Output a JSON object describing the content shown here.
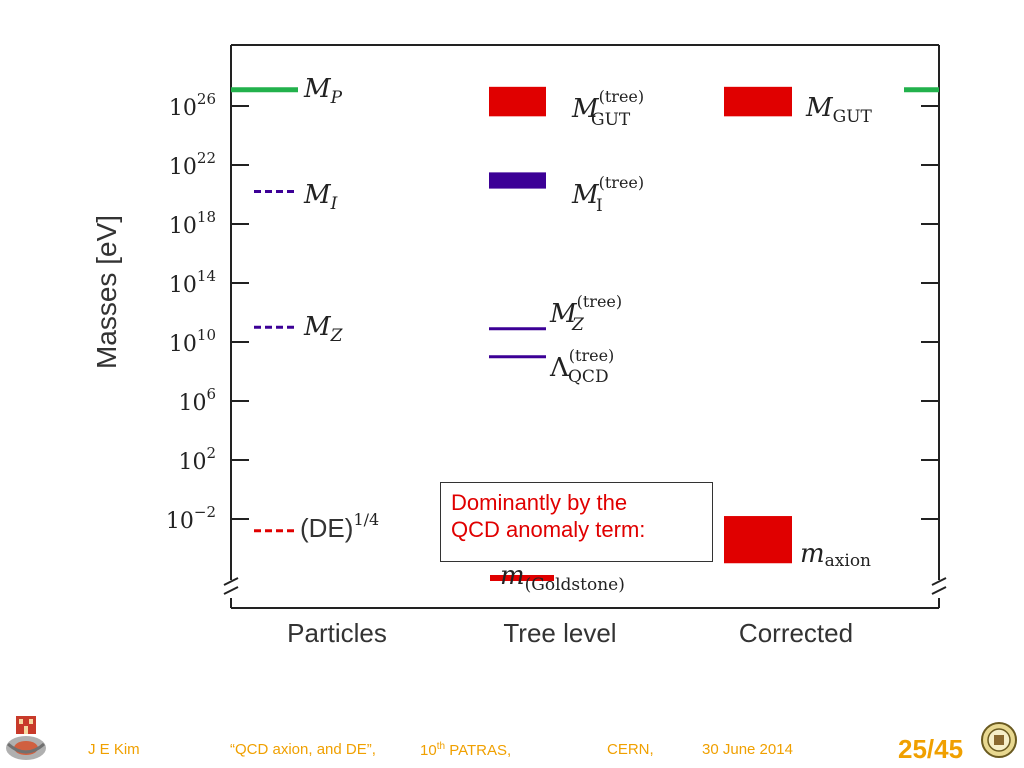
{
  "chart_data": {
    "type": "diagram",
    "ylabel": "Masses [eV]",
    "y_scale": "log10",
    "ylim_exp": [
      -6,
      30
    ],
    "y_ticks": [
      {
        "exp": 26,
        "base": "10",
        "sup": "26"
      },
      {
        "exp": 22,
        "base": "10",
        "sup": "22"
      },
      {
        "exp": 18,
        "base": "10",
        "sup": "18"
      },
      {
        "exp": 14,
        "base": "10",
        "sup": "14"
      },
      {
        "exp": 10,
        "base": "10",
        "sup": "10"
      },
      {
        "exp": 6,
        "base": "10",
        "sup": "6"
      },
      {
        "exp": 2,
        "base": "10",
        "sup": "2"
      },
      {
        "exp": -2,
        "base": "10",
        "sup": "−2"
      }
    ],
    "x_categories": [
      "Particles",
      "Tree level",
      "Corrected"
    ],
    "levels": [
      {
        "column": "Particles",
        "label_main": "M",
        "label_sub": "P",
        "exp_low": 27.1,
        "exp_high": 27.1,
        "color": "#22b14c",
        "style": "solid"
      },
      {
        "column": "Particles",
        "label_main": "M",
        "label_sub": "I",
        "exp_low": 20.2,
        "exp_high": 20.2,
        "color": "#3c0096",
        "style": "dashed"
      },
      {
        "column": "Particles",
        "label_main": "M",
        "label_sub": "Z",
        "exp_low": 11.0,
        "exp_high": 11.0,
        "color": "#3c0096",
        "style": "dashed"
      },
      {
        "column": "Particles",
        "label_main": "(DE)",
        "label_sup": "1/4",
        "exp_low": -2.8,
        "exp_high": -2.8,
        "color": "#e00000",
        "style": "dashed"
      },
      {
        "column": "Tree level",
        "label_main": "M",
        "label_sub": "GUT",
        "label_sup": "(tree)",
        "exp_low": 25.3,
        "exp_high": 27.3,
        "color": "#e00000",
        "style": "bar"
      },
      {
        "column": "Tree level",
        "label_main": "M",
        "label_sub": "I",
        "label_sup": "(tree)",
        "exp_low": 20.4,
        "exp_high": 21.5,
        "color": "#3c0096",
        "style": "bar"
      },
      {
        "column": "Tree level",
        "label_main": "M",
        "label_sub": "Z",
        "label_sup": "(tree)",
        "exp_low": 10.9,
        "exp_high": 10.9,
        "color": "#3c0096",
        "style": "solid"
      },
      {
        "column": "Tree level",
        "label_main": "Λ",
        "label_sub": "QCD",
        "label_sup": "(tree)",
        "exp_low": 9.0,
        "exp_high": 9.0,
        "color": "#3c0096",
        "style": "solid"
      },
      {
        "column": "Tree level",
        "label_main": "m",
        "label_sub": "(Goldstone)",
        "exp_low": -6.0,
        "exp_high": -6.0,
        "color": "#e00000",
        "style": "solid"
      },
      {
        "column": "Corrected",
        "label_main": "M",
        "label_sub": "GUT",
        "exp_low": 25.3,
        "exp_high": 27.3,
        "color": "#e00000",
        "style": "bar"
      },
      {
        "column": "Corrected",
        "label_main": "m",
        "label_sub": "axion",
        "exp_low": -5.0,
        "exp_high": -1.8,
        "color": "#e00000",
        "style": "bar"
      }
    ],
    "right_marker_exp": 27.1,
    "annotation": "Dominantly by the QCD anomaly term:"
  },
  "callout": {
    "line1": "Dominantly by the",
    "line2": "QCD anomaly term:"
  },
  "footer": {
    "author": "J  E  Kim",
    "talk": "“QCD axion,  and DE”,",
    "venue_num": "10",
    "venue_sup": "th",
    "venue_rest": " PATRAS,",
    "place": "CERN,",
    "date": "30 June  2014",
    "page": "25/45"
  },
  "colors": {
    "red": "#e00000",
    "purple": "#3c0096",
    "green": "#22b14c",
    "footer_orange": "#f0a000"
  }
}
